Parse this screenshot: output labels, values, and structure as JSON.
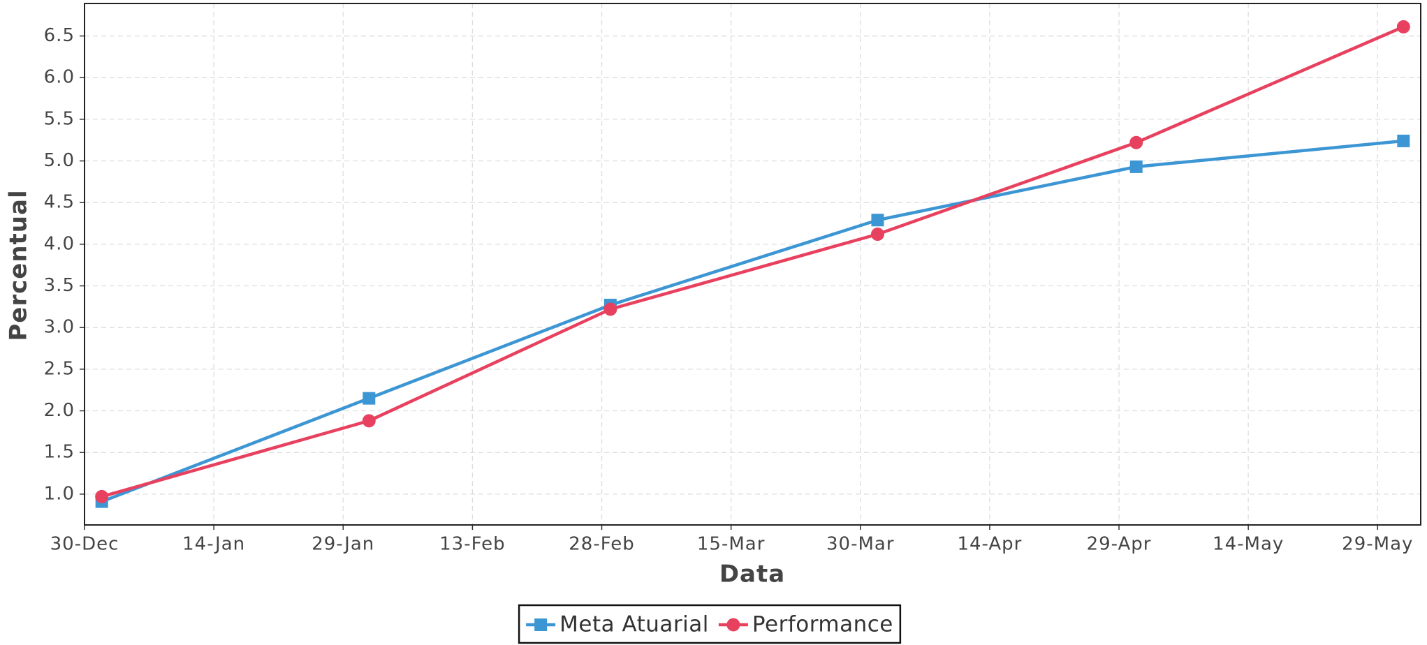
{
  "chart_data": {
    "type": "line",
    "x_label": "Data",
    "y_label": "Percentual",
    "x": [
      "01-Jan",
      "01-Feb",
      "01-Mar",
      "01-Apr",
      "01-May",
      "01-Jun"
    ],
    "series": [
      {
        "name": "Meta Atuarial",
        "color": "#3d96d4",
        "marker": "square",
        "values": [
          0.91,
          2.15,
          3.27,
          4.29,
          4.93,
          5.24
        ]
      },
      {
        "name": "Performance",
        "color": "#e8415f",
        "marker": "circle",
        "values": [
          0.97,
          1.88,
          3.22,
          4.12,
          5.22,
          6.61
        ]
      }
    ],
    "xlim": [
      "30-Dec",
      "03-Jun"
    ],
    "xticks": [
      "30-Dec",
      "14-Jan",
      "29-Jan",
      "13-Feb",
      "28-Feb",
      "15-Mar",
      "30-Mar",
      "14-Apr",
      "29-Apr",
      "14-May",
      "29-May"
    ],
    "ylim": [
      0.63,
      6.89
    ],
    "yticks": [
      {
        "value": 1,
        "label": "1.0"
      },
      1.5,
      {
        "value": 2,
        "label": "2.0"
      },
      2.5,
      {
        "value": 3,
        "label": "3.0"
      },
      3.5,
      {
        "value": 4,
        "label": "4.0"
      },
      4.5,
      {
        "value": 5,
        "label": "5.0"
      },
      5.5,
      {
        "value": 6,
        "label": "6.0"
      },
      6.5
    ],
    "grid": true,
    "legend": "bottom"
  }
}
